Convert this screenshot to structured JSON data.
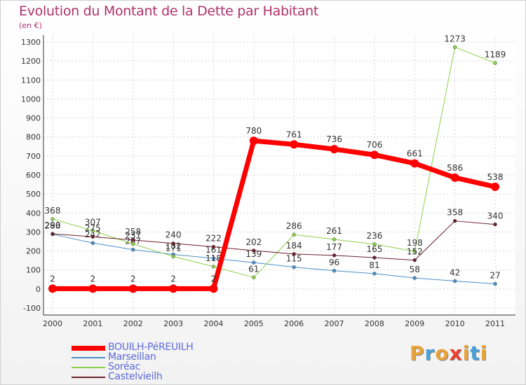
{
  "title": "Evolution du Montant de la Dette par Habitant",
  "unit": "(en €)",
  "brand": {
    "text": "Proxiti",
    "colors": [
      "#e8a33a",
      "#4aa0d8",
      "#e8a33a",
      "#e84030",
      "#e8a33a",
      "#4aa0d8",
      "#e8a33a"
    ]
  },
  "chart_data": {
    "type": "line",
    "x": [
      "2000",
      "2001",
      "2002",
      "2003",
      "2004",
      "2005",
      "2006",
      "2007",
      "2008",
      "2009",
      "2010",
      "2011"
    ],
    "ylim": [
      -100,
      1300
    ],
    "yticks": [
      "1300",
      "1200",
      "1100",
      "1000",
      "900",
      "800",
      "700",
      "600",
      "500",
      "400",
      "300",
      "200",
      "100",
      "0",
      "-100"
    ],
    "grid": true,
    "legend_position": "bottom-left",
    "series": [
      {
        "name": "Marseillan",
        "color": "#4a8fc8",
        "width": 1,
        "dot": 5,
        "values": [
          288,
          242,
          207,
          182,
          161,
          139,
          115,
          96,
          81,
          58,
          42,
          27
        ],
        "labels": [
          "288",
          "242",
          "207",
          "182",
          "161",
          "139",
          "115",
          "96",
          "81",
          "58",
          "42",
          "27"
        ]
      },
      {
        "name": "Soréac",
        "color": "#8ed04a",
        "width": 1,
        "dot": 5,
        "values": [
          368,
          307,
          237,
          171,
          118,
          61,
          286,
          261,
          236,
          198,
          1273,
          1189
        ],
        "labels": [
          "368",
          "307",
          "237",
          "171",
          "118",
          "61",
          "286",
          "261",
          "236",
          "198",
          "1273",
          "1189"
        ]
      },
      {
        "name": "Castelvieilh",
        "color": "#6b1f2a",
        "width": 1,
        "dot": 5,
        "values": [
          290,
          275,
          258,
          240,
          222,
          202,
          184,
          177,
          165,
          152,
          358,
          340
        ],
        "labels": [
          "290",
          "275",
          "258",
          "240",
          "222",
          "202",
          "184",
          "177",
          "165",
          "152",
          "358",
          "340"
        ]
      },
      {
        "name": "BOUILH-PéREUILH",
        "color": "#ff0000",
        "width": 7,
        "dot": 12,
        "values": [
          2,
          2,
          2,
          2,
          2,
          780,
          761,
          736,
          706,
          661,
          586,
          538
        ],
        "labels": [
          "2",
          "2",
          "2",
          "2",
          "2",
          "780",
          "761",
          "736",
          "706",
          "661",
          "586",
          "538"
        ]
      }
    ],
    "legend": [
      {
        "name": "BOUILH-PéREUILH",
        "color": "#ff0000",
        "width": 7
      },
      {
        "name": "Marseillan",
        "color": "#4a8fc8",
        "width": 2
      },
      {
        "name": "Soréac",
        "color": "#8ed04a",
        "width": 2
      },
      {
        "name": "Castelvieilh",
        "color": "#6b1f2a",
        "width": 2
      }
    ]
  }
}
